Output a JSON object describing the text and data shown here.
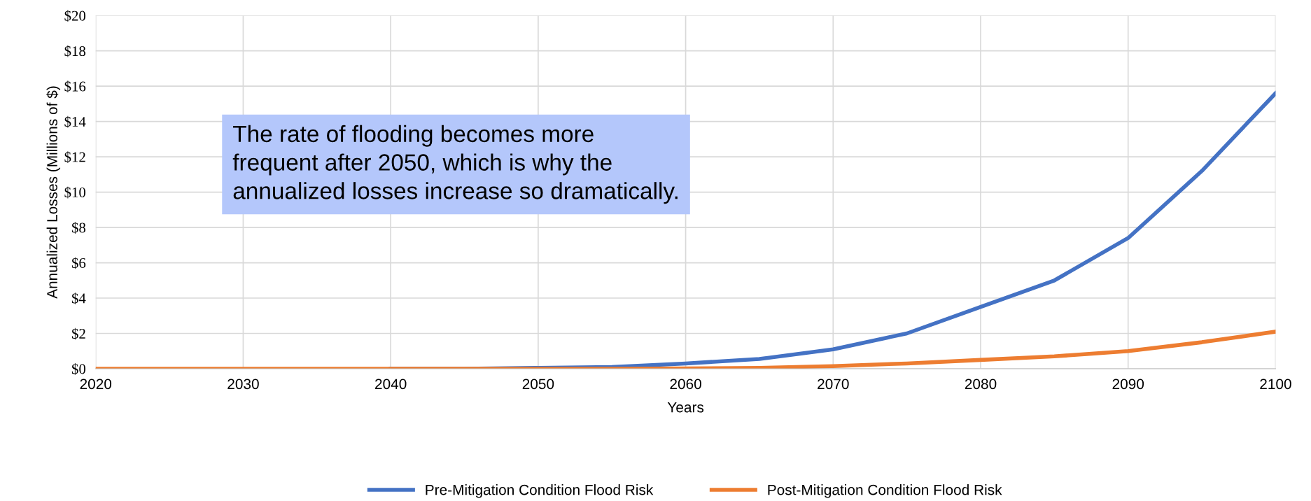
{
  "chart_data": {
    "type": "line",
    "xlabel": "Years",
    "ylabel": "Annualized Losses (Millions of $)",
    "x": [
      2020,
      2025,
      2030,
      2035,
      2040,
      2045,
      2050,
      2055,
      2060,
      2065,
      2070,
      2075,
      2080,
      2085,
      2090,
      2095,
      2100
    ],
    "series": [
      {
        "name": "Pre-Mitigation Condition Flood Risk",
        "color": "#4472c4",
        "values": [
          null,
          null,
          null,
          null,
          0,
          0,
          0.05,
          0.1,
          0.3,
          0.55,
          1.1,
          2.0,
          3.5,
          5.0,
          7.4,
          11.2,
          15.6
        ]
      },
      {
        "name": "Post-Mitigation Condition Flood Risk",
        "color": "#ed7d31",
        "values": [
          0,
          0,
          0,
          0,
          0,
          0,
          0,
          0,
          0.02,
          0.05,
          0.15,
          0.3,
          0.5,
          0.7,
          1.0,
          1.5,
          2.1
        ]
      }
    ],
    "xlim": [
      2020,
      2100
    ],
    "xticks": [
      2020,
      2030,
      2040,
      2050,
      2060,
      2070,
      2080,
      2090,
      2100
    ],
    "ylim": [
      0,
      20
    ],
    "yticks": [
      {
        "value": 0,
        "label": "$0"
      },
      {
        "value": 2,
        "label": "$2"
      },
      {
        "value": 4,
        "label": "$4"
      },
      {
        "value": 6,
        "label": "$6"
      },
      {
        "value": 8,
        "label": "$8"
      },
      {
        "value": 10,
        "label": "$10"
      },
      {
        "value": 12,
        "label": "$12"
      },
      {
        "value": 14,
        "label": "$14"
      },
      {
        "value": 16,
        "label": "$16"
      },
      {
        "value": 18,
        "label": "$18"
      },
      {
        "value": 20,
        "label": "$20"
      }
    ],
    "annotations": [
      "The rate of flooding becomes more\nfrequent after 2050, which is why the\nannualized losses increase so dramatically."
    ],
    "grid": true,
    "legend": "bottom",
    "marker": "none",
    "line_style": "solid"
  }
}
